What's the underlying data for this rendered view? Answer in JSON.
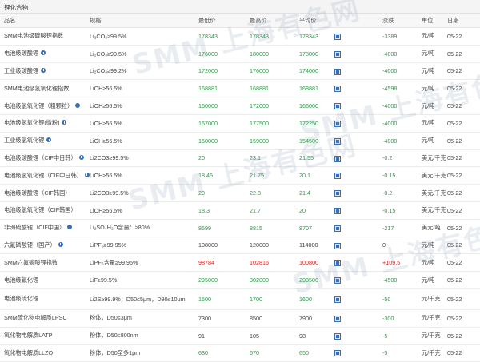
{
  "section_title": "锂化合物",
  "headers": {
    "name": "品名",
    "spec": "规格",
    "low": "最低价",
    "high": "最高价",
    "avg": "平均价",
    "change": "涨跌",
    "unit": "单位",
    "date": "日期"
  },
  "rows": [
    {
      "name": "SMM电池级碳酸锂指数",
      "spec": "Li₂CO₃≥99.5%",
      "low": "178343",
      "high": "178343",
      "avg": "178343",
      "change": "-3389",
      "unit": "元/吨",
      "date": "05-22",
      "info": false,
      "price_color": "green",
      "change_color": "green"
    },
    {
      "name": "电池级碳酸锂",
      "spec": "Li₂CO₃≥99.5%",
      "low": "176000",
      "high": "180000",
      "avg": "178000",
      "change": "-4000",
      "unit": "元/吨",
      "date": "05-22",
      "info": true,
      "price_color": "green",
      "change_color": "green"
    },
    {
      "name": "工业级碳酸锂",
      "spec": "Li₂CO₃≥99.2%",
      "low": "172000",
      "high": "176000",
      "avg": "174000",
      "change": "-4000",
      "unit": "元/吨",
      "date": "05-22",
      "info": true,
      "price_color": "green",
      "change_color": "green"
    },
    {
      "name": "SMM电池级氢氧化锂指数",
      "spec": "LiOH≥56.5%",
      "low": "168881",
      "high": "168881",
      "avg": "168881",
      "change": "-4598",
      "unit": "元/吨",
      "date": "05-22",
      "info": false,
      "price_color": "green",
      "change_color": "green"
    },
    {
      "name": "电池级氢氧化锂（粗颗粒）",
      "spec": "LiOH≥56.5%",
      "low": "160000",
      "high": "172000",
      "avg": "166000",
      "change": "-4000",
      "unit": "元/吨",
      "date": "05-22",
      "info": true,
      "price_color": "green",
      "change_color": "green"
    },
    {
      "name": "电池级氢氧化锂(微粉)",
      "spec": "LiOH≥56.5%",
      "low": "167000",
      "high": "177500",
      "avg": "172250",
      "change": "-4000",
      "unit": "元/吨",
      "date": "05-22",
      "info": true,
      "price_color": "green",
      "change_color": "green"
    },
    {
      "name": "工业级氢氧化锂",
      "spec": "LiOH≥56.5%",
      "low": "150000",
      "high": "159000",
      "avg": "154500",
      "change": "-4000",
      "unit": "元/吨",
      "date": "05-22",
      "info": true,
      "price_color": "green",
      "change_color": "green"
    },
    {
      "name": "电池级碳酸锂（CIF中日韩）",
      "spec": "Li2CO3≥99.5%",
      "low": "20",
      "high": "23.1",
      "avg": "21.55",
      "change": "-0.2",
      "unit": "美元/千克",
      "date": "05-22",
      "info": true,
      "price_color": "green",
      "change_color": "green"
    },
    {
      "name": "电池级氢氧化锂（CIF中日韩）",
      "spec": "LiOH≥56.5%",
      "low": "18.45",
      "high": "21.75",
      "avg": "20.1",
      "change": "-0.15",
      "unit": "美元/千克",
      "date": "05-22",
      "info": true,
      "price_color": "green",
      "change_color": "green"
    },
    {
      "name": "电池级碳酸锂（CIF韩国）",
      "spec": "Li2CO3≥99.5%",
      "low": "20",
      "high": "22.8",
      "avg": "21.4",
      "change": "-0.2",
      "unit": "美元/千克",
      "date": "05-22",
      "info": false,
      "price_color": "green",
      "change_color": "green"
    },
    {
      "name": "电池级氢氧化锂（CIF韩国）",
      "spec": "LiOH≥56.5%",
      "low": "18.3",
      "high": "21.7",
      "avg": "20",
      "change": "-0.15",
      "unit": "美元/千克",
      "date": "05-22",
      "info": false,
      "price_color": "green",
      "change_color": "green"
    },
    {
      "name": "非洲硫酸锂（CIF中国）",
      "spec": "Li₂SO₄H₂O含量：≥80%",
      "low": "8599",
      "high": "8815",
      "avg": "8707",
      "change": "-217",
      "unit": "美元/吨",
      "date": "05-22",
      "info": true,
      "price_color": "green",
      "change_color": "green"
    },
    {
      "name": "六氟磷酸锂（国产）",
      "spec": "LiPF₆≥99.95%",
      "low": "108000",
      "high": "120000",
      "avg": "114000",
      "change": "0",
      "unit": "元/吨",
      "date": "05-22",
      "info": true,
      "price_color": "plain",
      "change_color": "plain"
    },
    {
      "name": "SMM六氟磷酸锂指数",
      "spec": "LiPF₆含量≥99.95%",
      "low": "98784",
      "high": "102816",
      "avg": "100800",
      "change": "+109.5",
      "unit": "元/吨",
      "date": "05-22",
      "info": false,
      "price_color": "red",
      "change_color": "red"
    },
    {
      "name": "电池级氟化锂",
      "spec": "LiF≥99.5%",
      "low": "295000",
      "high": "302000",
      "avg": "298500",
      "change": "-4500",
      "unit": "元/吨",
      "date": "05-22",
      "info": false,
      "price_color": "green",
      "change_color": "green"
    },
    {
      "name": "电池级硫化锂",
      "spec": "Li2S≥99.9%，D50≤5μm，D90≤10μm",
      "low": "1500",
      "high": "1700",
      "avg": "1600",
      "change": "-50",
      "unit": "元/千克",
      "date": "05-22",
      "info": false,
      "price_color": "green",
      "change_color": "green",
      "tall": true
    },
    {
      "name": "SMM硫化物电解质LPSC",
      "spec": "粉体，D50≤3μm",
      "low": "7300",
      "high": "8500",
      "avg": "7900",
      "change": "-300",
      "unit": "元/千克",
      "date": "05-22",
      "info": false,
      "price_color": "plain",
      "change_color": "green"
    },
    {
      "name": "氧化物电解质LATP",
      "spec": "粉体，D50≤800nm",
      "low": "91",
      "high": "105",
      "avg": "98",
      "change": "-5",
      "unit": "元/千克",
      "date": "05-22",
      "info": false,
      "price_color": "plain",
      "change_color": "green"
    },
    {
      "name": "氧化物电解质LLZO",
      "spec": "粉体，D50至多1μm",
      "low": "630",
      "high": "670",
      "avg": "650",
      "change": "-5",
      "unit": "元/千克",
      "date": "05-22",
      "info": false,
      "price_color": "green",
      "change_color": "green"
    }
  ],
  "watermark": "SMM 上海有色网"
}
